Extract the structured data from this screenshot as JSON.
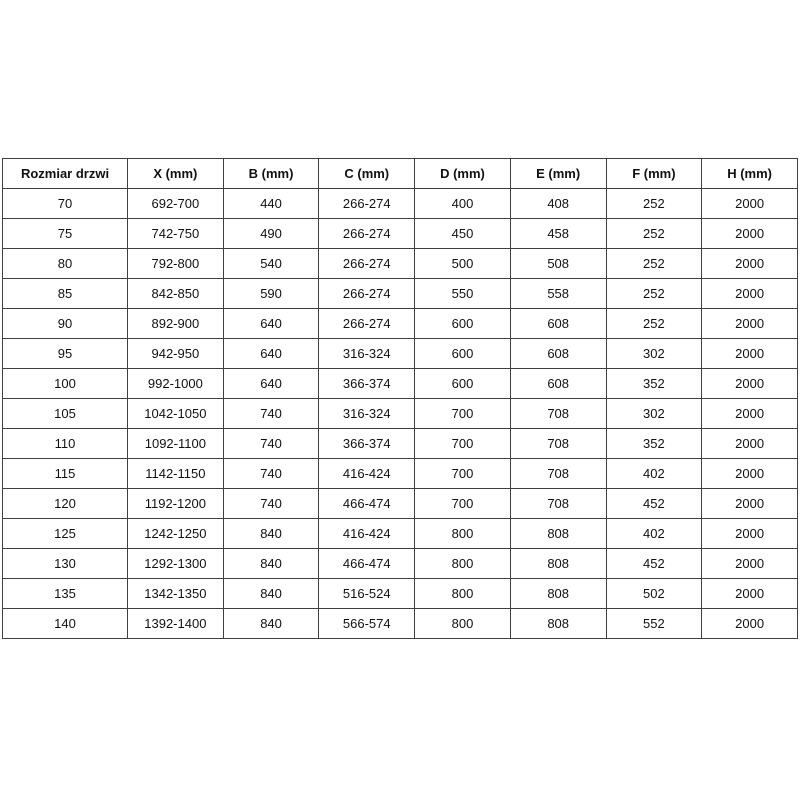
{
  "page": {
    "background_color": "#ffffff",
    "border_color": "#404040",
    "text_color": "#111111"
  },
  "chart_data": {
    "type": "table",
    "title": "",
    "legend": null,
    "columns": [
      "Rozmiar drzwi",
      "X (mm)",
      "B (mm)",
      "C (mm)",
      "D (mm)",
      "E (mm)",
      "F (mm)",
      "H (mm)"
    ],
    "rows": [
      [
        "70",
        "692-700",
        "440",
        "266-274",
        "400",
        "408",
        "252",
        "2000"
      ],
      [
        "75",
        "742-750",
        "490",
        "266-274",
        "450",
        "458",
        "252",
        "2000"
      ],
      [
        "80",
        "792-800",
        "540",
        "266-274",
        "500",
        "508",
        "252",
        "2000"
      ],
      [
        "85",
        "842-850",
        "590",
        "266-274",
        "550",
        "558",
        "252",
        "2000"
      ],
      [
        "90",
        "892-900",
        "640",
        "266-274",
        "600",
        "608",
        "252",
        "2000"
      ],
      [
        "95",
        "942-950",
        "640",
        "316-324",
        "600",
        "608",
        "302",
        "2000"
      ],
      [
        "100",
        "992-1000",
        "640",
        "366-374",
        "600",
        "608",
        "352",
        "2000"
      ],
      [
        "105",
        "1042-1050",
        "740",
        "316-324",
        "700",
        "708",
        "302",
        "2000"
      ],
      [
        "110",
        "1092-1100",
        "740",
        "366-374",
        "700",
        "708",
        "352",
        "2000"
      ],
      [
        "115",
        "1142-1150",
        "740",
        "416-424",
        "700",
        "708",
        "402",
        "2000"
      ],
      [
        "120",
        "1192-1200",
        "740",
        "466-474",
        "700",
        "708",
        "452",
        "2000"
      ],
      [
        "125",
        "1242-1250",
        "840",
        "416-424",
        "800",
        "808",
        "402",
        "2000"
      ],
      [
        "130",
        "1292-1300",
        "840",
        "466-474",
        "800",
        "808",
        "452",
        "2000"
      ],
      [
        "135",
        "1342-1350",
        "840",
        "516-524",
        "800",
        "808",
        "502",
        "2000"
      ],
      [
        "140",
        "1392-1400",
        "840",
        "566-574",
        "800",
        "808",
        "552",
        "2000"
      ]
    ]
  }
}
